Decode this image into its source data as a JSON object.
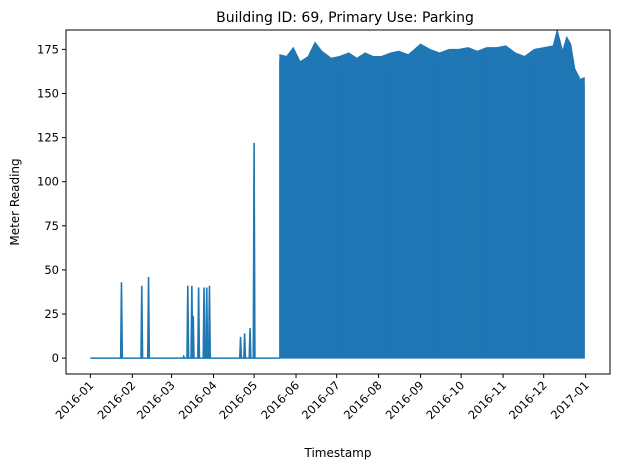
{
  "chart_data": {
    "type": "line",
    "title": "Building ID: 69, Primary Use: Parking",
    "xlabel": "Timestamp",
    "ylabel": "Meter Reading",
    "xlim": [
      "2016-01-01",
      "2017-01-01"
    ],
    "ylim": [
      -9,
      186
    ],
    "grid": false,
    "line_color": "#1f77b4",
    "x_ticks": [
      "2016-01",
      "2016-02",
      "2016-03",
      "2016-04",
      "2016-05",
      "2016-06",
      "2016-07",
      "2016-08",
      "2016-09",
      "2016-10",
      "2016-11",
      "2016-12",
      "2017-01"
    ],
    "y_ticks": [
      0,
      25,
      50,
      75,
      100,
      125,
      150,
      175
    ],
    "baseline": {
      "x_range": [
        "2016-01-01",
        "2016-05-20"
      ],
      "y": 0
    },
    "spikes": [
      {
        "x": "2016-01-24",
        "y": 43
      },
      {
        "x": "2016-02-08",
        "y": 41
      },
      {
        "x": "2016-02-13",
        "y": 46
      },
      {
        "x": "2016-03-10",
        "y": 1
      },
      {
        "x": "2016-03-13",
        "y": 41
      },
      {
        "x": "2016-03-16",
        "y": 41
      },
      {
        "x": "2016-03-17",
        "y": 24
      },
      {
        "x": "2016-03-21",
        "y": 40
      },
      {
        "x": "2016-03-25",
        "y": 40
      },
      {
        "x": "2016-03-27",
        "y": 40
      },
      {
        "x": "2016-03-29",
        "y": 41
      },
      {
        "x": "2016-04-21",
        "y": 12
      },
      {
        "x": "2016-04-24",
        "y": 14
      },
      {
        "x": "2016-04-28",
        "y": 17
      },
      {
        "x": "2016-05-01",
        "y": 122
      }
    ],
    "dense_series": {
      "x_range": [
        "2016-05-20",
        "2016-12-31"
      ],
      "low": 0,
      "peaks": [
        {
          "x": "2016-05-20",
          "y": 172
        },
        {
          "x": "2016-05-25",
          "y": 171
        },
        {
          "x": "2016-05-30",
          "y": 176
        },
        {
          "x": "2016-06-04",
          "y": 168
        },
        {
          "x": "2016-06-10",
          "y": 171
        },
        {
          "x": "2016-06-15",
          "y": 179
        },
        {
          "x": "2016-06-20",
          "y": 174
        },
        {
          "x": "2016-06-27",
          "y": 170
        },
        {
          "x": "2016-07-03",
          "y": 171
        },
        {
          "x": "2016-07-10",
          "y": 173
        },
        {
          "x": "2016-07-16",
          "y": 170
        },
        {
          "x": "2016-07-22",
          "y": 173
        },
        {
          "x": "2016-07-28",
          "y": 171
        },
        {
          "x": "2016-08-03",
          "y": 171
        },
        {
          "x": "2016-08-10",
          "y": 173
        },
        {
          "x": "2016-08-16",
          "y": 174
        },
        {
          "x": "2016-08-23",
          "y": 172
        },
        {
          "x": "2016-09-01",
          "y": 178
        },
        {
          "x": "2016-09-08",
          "y": 175
        },
        {
          "x": "2016-09-15",
          "y": 173
        },
        {
          "x": "2016-09-22",
          "y": 175
        },
        {
          "x": "2016-09-29",
          "y": 175
        },
        {
          "x": "2016-10-06",
          "y": 176
        },
        {
          "x": "2016-10-13",
          "y": 174
        },
        {
          "x": "2016-10-20",
          "y": 176
        },
        {
          "x": "2016-10-27",
          "y": 176
        },
        {
          "x": "2016-11-03",
          "y": 177
        },
        {
          "x": "2016-11-10",
          "y": 173
        },
        {
          "x": "2016-11-17",
          "y": 171
        },
        {
          "x": "2016-11-24",
          "y": 175
        },
        {
          "x": "2016-12-01",
          "y": 176
        },
        {
          "x": "2016-12-08",
          "y": 177
        },
        {
          "x": "2016-12-11",
          "y": 186
        },
        {
          "x": "2016-12-15",
          "y": 174
        },
        {
          "x": "2016-12-18",
          "y": 182
        },
        {
          "x": "2016-12-21",
          "y": 178
        },
        {
          "x": "2016-12-24",
          "y": 164
        },
        {
          "x": "2016-12-28",
          "y": 158
        },
        {
          "x": "2016-12-31",
          "y": 159
        }
      ],
      "typical_high": 158,
      "typical_low": 8
    }
  }
}
